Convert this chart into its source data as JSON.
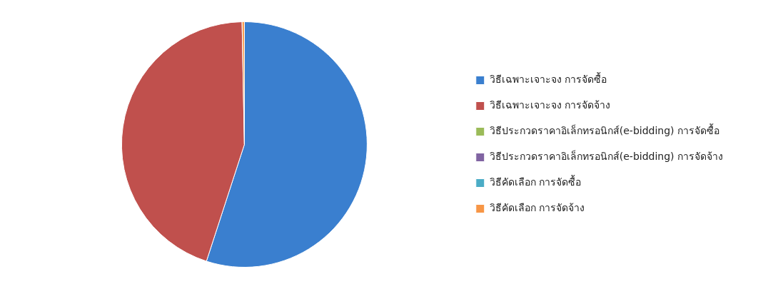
{
  "chart_data": {
    "type": "pie",
    "categories": [
      "วิธีเฉพาะเจาะจง การจัดซื้อ",
      "วิธีเฉพาะเจาะจง การจัดจ้าง",
      "วิธีประกวดราคาอิเล็กทรอนิกส์(e-bidding) การจัดซื้อ",
      "วิธีประกวดราคาอิเล็กทรอนิกส์(e-bidding) การจัดจ้าง",
      "วิธีคัดเลือก การจัดซื้อ",
      "วิธีคัดเลือก การจัดจ้าง"
    ],
    "values": [
      55,
      44.7,
      0,
      0,
      0,
      0.3
    ],
    "colors": [
      "#3a7fcf",
      "#c0504d",
      "#9bbb59",
      "#8064a2",
      "#4bacc6",
      "#f79646"
    ],
    "legend": "right"
  }
}
